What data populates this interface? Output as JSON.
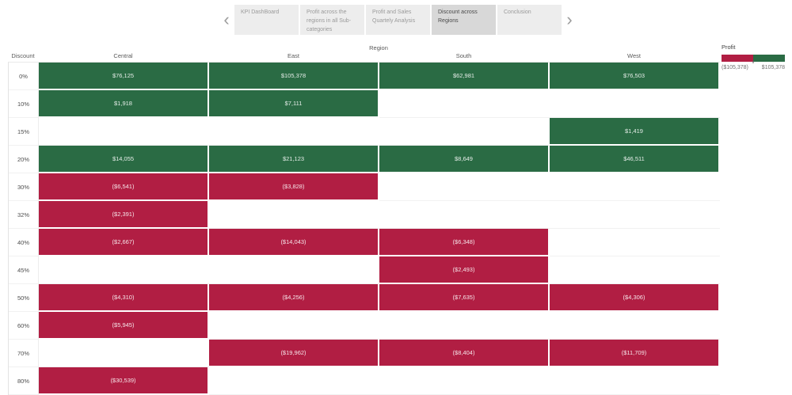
{
  "nav": {
    "prev_icon": "‹",
    "next_icon": "›",
    "tabs": [
      {
        "label": "KPI DashBoard",
        "selected": false
      },
      {
        "label": "Profit across the regions in all Sub-categories",
        "selected": false
      },
      {
        "label": "Profit and Sales Quartely Analysis",
        "selected": false
      },
      {
        "label": "Discount across Regions",
        "selected": true
      },
      {
        "label": "Conclusion",
        "selected": false
      }
    ]
  },
  "chart_data": {
    "type": "heatmap",
    "title": "Region",
    "row_axis_label": "Discount",
    "columns": [
      "Central",
      "East",
      "South",
      "West"
    ],
    "rows": [
      {
        "discount": "0%",
        "values": [
          76125,
          105378,
          62981,
          76503
        ],
        "labels": [
          "$76,125",
          "$105,378",
          "$62,981",
          "$76,503"
        ]
      },
      {
        "discount": "10%",
        "values": [
          1918,
          7111,
          null,
          null
        ],
        "labels": [
          "$1,918",
          "$7,111",
          null,
          null
        ]
      },
      {
        "discount": "15%",
        "values": [
          null,
          null,
          null,
          1419
        ],
        "labels": [
          null,
          null,
          null,
          "$1,419"
        ]
      },
      {
        "discount": "20%",
        "values": [
          14055,
          21123,
          8649,
          46511
        ],
        "labels": [
          "$14,055",
          "$21,123",
          "$8,649",
          "$46,511"
        ]
      },
      {
        "discount": "30%",
        "values": [
          -6541,
          -3828,
          null,
          null
        ],
        "labels": [
          "($6,541)",
          "($3,828)",
          null,
          null
        ]
      },
      {
        "discount": "32%",
        "values": [
          -2391,
          null,
          null,
          null
        ],
        "labels": [
          "($2,391)",
          null,
          null,
          null
        ]
      },
      {
        "discount": "40%",
        "values": [
          -2667,
          -14043,
          -6348,
          null
        ],
        "labels": [
          "($2,667)",
          "($14,043)",
          "($6,348)",
          null
        ]
      },
      {
        "discount": "45%",
        "values": [
          null,
          null,
          -2493,
          null
        ],
        "labels": [
          null,
          null,
          "($2,493)",
          null
        ]
      },
      {
        "discount": "50%",
        "values": [
          -4310,
          -4256,
          -7635,
          -4306
        ],
        "labels": [
          "($4,310)",
          "($4,256)",
          "($7,635)",
          "($4,306)"
        ]
      },
      {
        "discount": "60%",
        "values": [
          -5945,
          null,
          null,
          null
        ],
        "labels": [
          "($5,945)",
          null,
          null,
          null
        ]
      },
      {
        "discount": "70%",
        "values": [
          null,
          -19962,
          -8404,
          -11709
        ],
        "labels": [
          null,
          "($19,962)",
          "($8,404)",
          "($11,709)"
        ]
      },
      {
        "discount": "80%",
        "values": [
          -30539,
          null,
          null,
          null
        ],
        "labels": [
          "($30,539)",
          null,
          null,
          null
        ]
      }
    ],
    "legend": {
      "title": "Profit",
      "min_label": "($105,378)",
      "max_label": "$105,378"
    },
    "value_range": [
      -105378,
      105378
    ],
    "colors": {
      "positive": "#2a6b44",
      "negative": "#b11e43"
    }
  }
}
